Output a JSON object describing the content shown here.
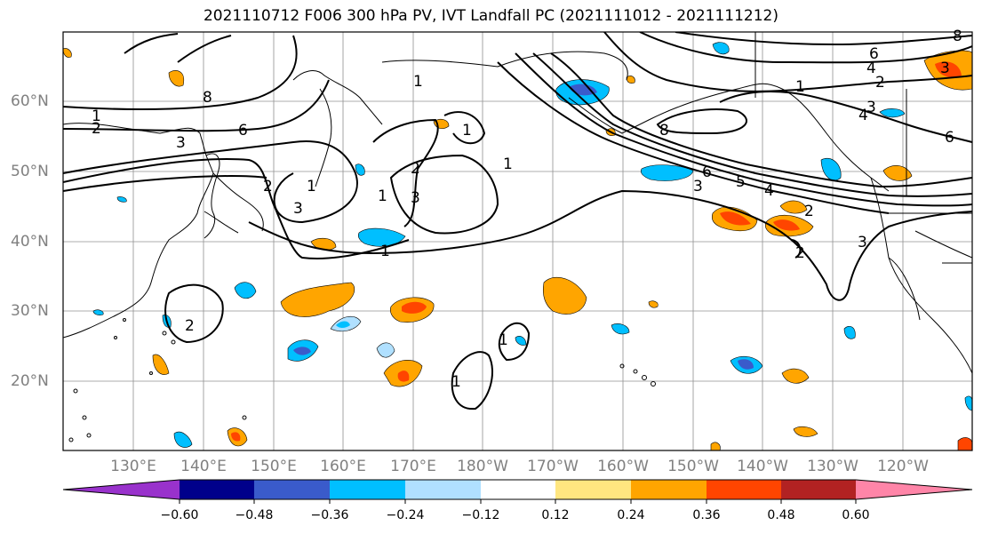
{
  "title": "2021110712 F006 300 hPa PV, IVT Landfall PC (2021111012 - 2021111212)",
  "lat_labels": [
    "60°N",
    "50°N",
    "40°N",
    "30°N",
    "20°N"
  ],
  "lon_labels": [
    "130°E",
    "140°E",
    "150°E",
    "160°E",
    "170°E",
    "180°W",
    "170°W",
    "160°W",
    "150°W",
    "140°W",
    "130°W",
    "120°W"
  ],
  "colors": {
    "land_line": "#000000",
    "grid": "#909090",
    "contour": "#000000",
    "axis_label": "#808080"
  },
  "colorbar": {
    "colors": [
      "#9932CC",
      "#00008B",
      "#3A5BCB",
      "#00BFFF",
      "#B0E0FF",
      "#FFFFFF",
      "#FFE680",
      "#FFA500",
      "#FF4500",
      "#B22222",
      "#FF85A8"
    ],
    "tick_labels": [
      "−0.60",
      "−0.48",
      "−0.36",
      "−0.24",
      "−0.12",
      "0.12",
      "0.24",
      "0.36",
      "0.48",
      "0.60"
    ]
  },
  "contour_labels": [
    "1",
    "2",
    "3",
    "4",
    "5",
    "6",
    "8"
  ]
}
